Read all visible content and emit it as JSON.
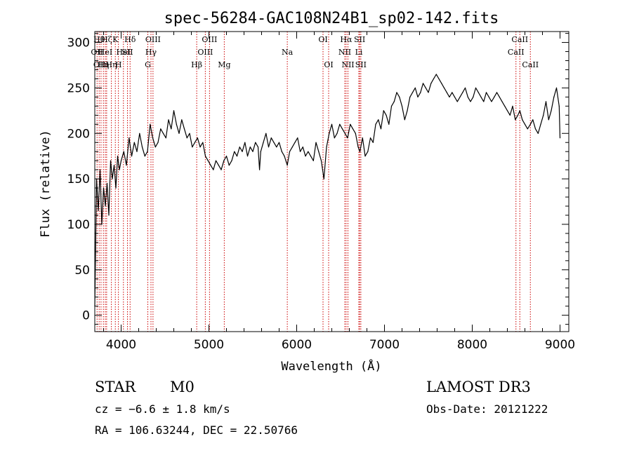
{
  "chart_data": {
    "type": "line",
    "title": "spec-56284-GAC108N24B1_sp02-142.fits",
    "xlabel": "Wavelength (Å)",
    "ylabel": "Flux (relative)",
    "xlim": [
      3700,
      9100
    ],
    "ylim": [
      -18,
      312
    ],
    "xticks": [
      4000,
      5000,
      6000,
      7000,
      8000,
      9000
    ],
    "yticks": [
      0,
      50,
      100,
      150,
      200,
      250,
      300
    ],
    "xtick_labels": [
      "4000",
      "5000",
      "6000",
      "7000",
      "8000",
      "9000"
    ],
    "ytick_labels": [
      "0",
      "50",
      "100",
      "150",
      "200",
      "250",
      "300"
    ],
    "grid": false,
    "series": [
      {
        "color": "#000000",
        "x": [
          3700,
          3720,
          3740,
          3760,
          3780,
          3800,
          3820,
          3840,
          3860,
          3880,
          3900,
          3920,
          3940,
          3960,
          3980,
          4000,
          4030,
          4060,
          4090,
          4120,
          4150,
          4180,
          4210,
          4240,
          4270,
          4300,
          4330,
          4360,
          4390,
          4420,
          4450,
          4480,
          4510,
          4540,
          4570,
          4600,
          4630,
          4660,
          4690,
          4720,
          4750,
          4780,
          4810,
          4840,
          4870,
          4900,
          4930,
          4960,
          4990,
          5020,
          5050,
          5080,
          5110,
          5140,
          5170,
          5200,
          5230,
          5260,
          5290,
          5320,
          5350,
          5380,
          5410,
          5440,
          5470,
          5500,
          5530,
          5560,
          5577,
          5590,
          5620,
          5650,
          5680,
          5710,
          5740,
          5770,
          5800,
          5830,
          5860,
          5893,
          5920,
          5950,
          5980,
          6010,
          6040,
          6070,
          6100,
          6130,
          6160,
          6190,
          6220,
          6250,
          6280,
          6310,
          6340,
          6370,
          6400,
          6430,
          6460,
          6490,
          6520,
          6550,
          6580,
          6610,
          6640,
          6670,
          6700,
          6720,
          6750,
          6780,
          6810,
          6840,
          6870,
          6900,
          6930,
          6960,
          6990,
          7020,
          7050,
          7080,
          7110,
          7140,
          7170,
          7200,
          7230,
          7260,
          7290,
          7320,
          7350,
          7380,
          7410,
          7440,
          7470,
          7500,
          7530,
          7560,
          7590,
          7620,
          7650,
          7680,
          7710,
          7740,
          7770,
          7800,
          7830,
          7860,
          7890,
          7920,
          7950,
          7980,
          8010,
          8040,
          8070,
          8100,
          8130,
          8160,
          8190,
          8220,
          8250,
          8280,
          8310,
          8340,
          8370,
          8400,
          8430,
          8460,
          8490,
          8520,
          8542,
          8570,
          8600,
          8630,
          8662,
          8690,
          8720,
          8750,
          8780,
          8810,
          8840,
          8870,
          8900,
          8930,
          8960,
          8990,
          9000
        ],
        "y": [
          10,
          150,
          115,
          160,
          100,
          140,
          120,
          145,
          110,
          170,
          150,
          165,
          140,
          175,
          160,
          170,
          180,
          165,
          195,
          175,
          190,
          180,
          200,
          185,
          175,
          180,
          210,
          195,
          185,
          190,
          205,
          200,
          195,
          215,
          205,
          225,
          210,
          200,
          215,
          205,
          195,
          200,
          185,
          190,
          195,
          185,
          190,
          175,
          170,
          165,
          160,
          170,
          165,
          160,
          170,
          175,
          165,
          170,
          180,
          175,
          185,
          180,
          190,
          175,
          185,
          180,
          190,
          185,
          160,
          180,
          190,
          200,
          185,
          195,
          190,
          185,
          190,
          180,
          175,
          165,
          180,
          185,
          190,
          195,
          180,
          185,
          175,
          180,
          175,
          170,
          190,
          180,
          170,
          150,
          185,
          200,
          210,
          195,
          200,
          210,
          205,
          200,
          195,
          210,
          205,
          200,
          185,
          180,
          195,
          175,
          180,
          195,
          190,
          210,
          215,
          205,
          225,
          220,
          210,
          230,
          235,
          245,
          240,
          230,
          215,
          225,
          240,
          245,
          250,
          240,
          245,
          255,
          250,
          245,
          255,
          260,
          265,
          260,
          255,
          250,
          245,
          240,
          245,
          240,
          235,
          240,
          245,
          250,
          240,
          235,
          240,
          250,
          245,
          240,
          235,
          245,
          240,
          235,
          240,
          245,
          240,
          235,
          230,
          225,
          220,
          230,
          215,
          220,
          225,
          215,
          210,
          205,
          210,
          215,
          205,
          200,
          210,
          220,
          235,
          215,
          225,
          240,
          250,
          230,
          195
        ]
      }
    ],
    "lines": [
      {
        "x": 3726,
        "label": "OII",
        "row": 1
      },
      {
        "x": 3750,
        "label": "Hθ",
        "row": 0
      },
      {
        "x": 3771,
        "label": "OIII",
        "row": 2
      },
      {
        "x": 3798,
        "label": "Hη",
        "row": 2
      },
      {
        "x": 3820,
        "label": "HeI",
        "row": 1
      },
      {
        "x": 3835,
        "label": "Hζ",
        "row": 0
      },
      {
        "x": 3889,
        "label": "Hη",
        "row": 2
      },
      {
        "x": 3934,
        "label": "K",
        "row": 0
      },
      {
        "x": 3969,
        "label": "H",
        "row": 2
      },
      {
        "x": 4026,
        "label": "HeI",
        "row": 1
      },
      {
        "x": 4072,
        "label": "SII",
        "row": 1
      },
      {
        "x": 4102,
        "label": "Hδ",
        "row": 0
      },
      {
        "x": 4304,
        "label": "G",
        "row": 2
      },
      {
        "x": 4340,
        "label": "Hγ",
        "row": 1
      },
      {
        "x": 4363,
        "label": "OIII",
        "row": 0
      },
      {
        "x": 4861,
        "label": "Hβ",
        "row": 2
      },
      {
        "x": 4959,
        "label": "OIII",
        "row": 1
      },
      {
        "x": 5007,
        "label": "OIII",
        "row": 0
      },
      {
        "x": 5175,
        "label": "Mg",
        "row": 2
      },
      {
        "x": 5893,
        "label": "Na",
        "row": 1
      },
      {
        "x": 6300,
        "label": "OI",
        "row": 0
      },
      {
        "x": 6364,
        "label": "OI",
        "row": 2
      },
      {
        "x": 6548,
        "label": "NII",
        "row": 1
      },
      {
        "x": 6563,
        "label": "Hα",
        "row": 0
      },
      {
        "x": 6584,
        "label": "NII",
        "row": 2
      },
      {
        "x": 6708,
        "label": "Li",
        "row": 1
      },
      {
        "x": 6717,
        "label": "SII",
        "row": 0
      },
      {
        "x": 6731,
        "label": "SII",
        "row": 2
      },
      {
        "x": 8498,
        "label": "CaII",
        "row": 1
      },
      {
        "x": 8542,
        "label": "CaII",
        "row": 0
      },
      {
        "x": 8662,
        "label": "CaII",
        "row": 2
      }
    ],
    "line_color": "#cc0000"
  },
  "info": {
    "object_class": "STAR",
    "subclass": "M0",
    "survey": "LAMOST DR3",
    "cz": "cz = −6.6 ± 1.8 km/s",
    "obs_date": "Obs-Date: 20121222",
    "coords": "RA = 106.63244, DEC =  22.50766"
  }
}
